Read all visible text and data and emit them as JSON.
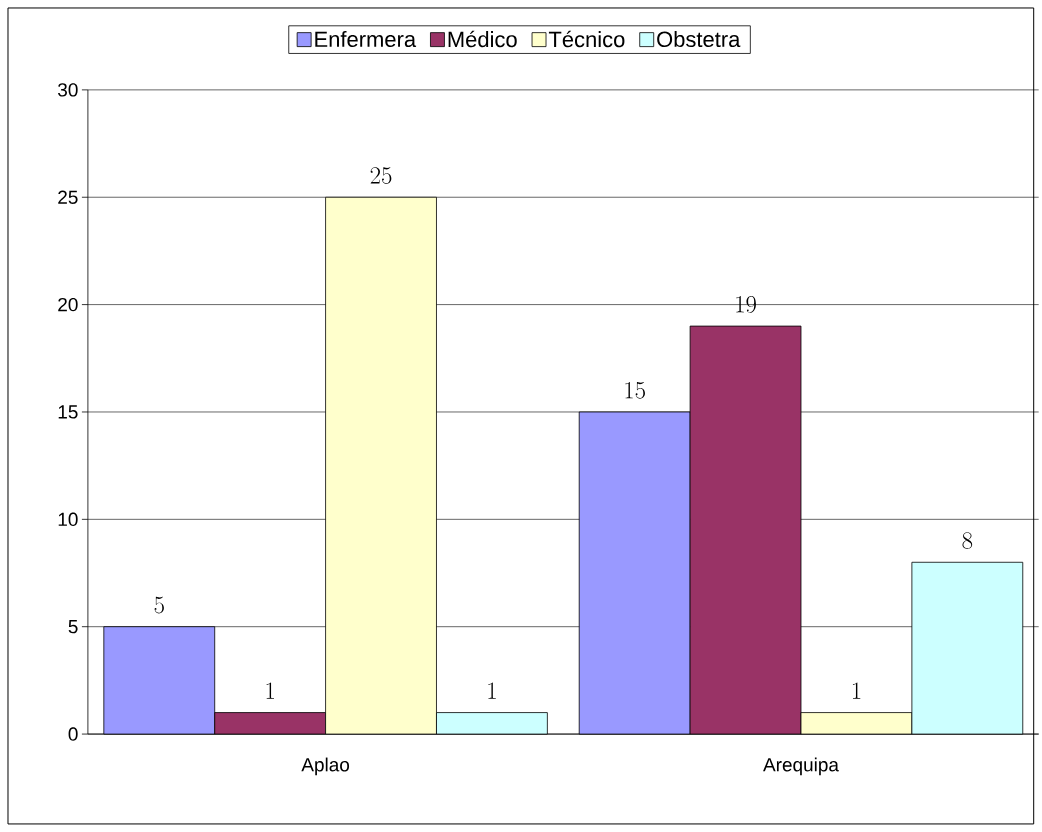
{
  "chart_data": {
    "type": "bar",
    "categories": [
      "Aplao",
      "Arequipa"
    ],
    "series": [
      {
        "name": "Enfermera",
        "color": "#9999ff",
        "values": [
          5,
          15
        ]
      },
      {
        "name": "Médico",
        "color": "#993366",
        "values": [
          1,
          19
        ]
      },
      {
        "name": "Técnico",
        "color": "#ffffcc",
        "values": [
          25,
          1
        ]
      },
      {
        "name": "Obstetra",
        "color": "#ccffff",
        "values": [
          1,
          8
        ]
      }
    ],
    "ylim": [
      0,
      30
    ],
    "yticks": [
      0,
      5,
      10,
      15,
      20,
      25,
      30
    ],
    "grid": "y",
    "legend": "top",
    "data_labels": true
  }
}
